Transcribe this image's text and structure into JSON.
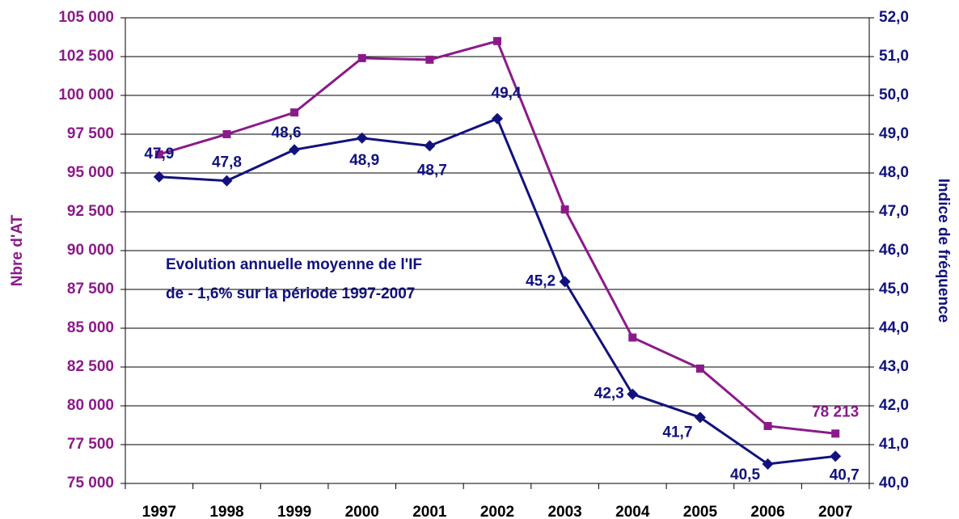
{
  "chart_data": {
    "type": "line",
    "y_label": "Nbre d'AT",
    "y2_label": "Indice de fréquence",
    "annotation": [
      "Evolution annuelle moyenne de l'IF",
      "de - 1,6% sur la période 1997-2007"
    ],
    "categories": [
      "1997",
      "1998",
      "1999",
      "2000",
      "2001",
      "2002",
      "2003",
      "2004",
      "2005",
      "2006",
      "2007"
    ],
    "series": [
      {
        "name": "Nbre d'AT",
        "color": "#8b1a89",
        "axis": "y",
        "marker": "square",
        "values": [
          96200,
          97500,
          98900,
          102400,
          102300,
          103500,
          92650,
          84400,
          82400,
          78700,
          78213
        ],
        "value_labels": [
          null,
          null,
          null,
          null,
          null,
          null,
          null,
          null,
          null,
          null,
          "78 213"
        ]
      },
      {
        "name": "Indice de fréquence",
        "color": "#12127e",
        "axis": "y2",
        "marker": "diamond",
        "values": [
          47.9,
          47.8,
          48.6,
          48.9,
          48.7,
          49.4,
          45.2,
          42.3,
          41.7,
          40.5,
          40.7
        ],
        "value_labels": [
          "47,9",
          "47,8",
          "48,6",
          "48,9",
          "48,7",
          "49,4",
          "45,2",
          "42,3",
          "41,7",
          "40,5",
          "40,7"
        ]
      }
    ],
    "ylim": [
      75000,
      105000
    ],
    "yticks": [
      {
        "value": 75000,
        "label": "75 000"
      },
      {
        "value": 77500,
        "label": "77 500"
      },
      {
        "value": 80000,
        "label": "80 000"
      },
      {
        "value": 82500,
        "label": "82 500"
      },
      {
        "value": 85000,
        "label": "85 000"
      },
      {
        "value": 87500,
        "label": "87 500"
      },
      {
        "value": 90000,
        "label": "90 000"
      },
      {
        "value": 92500,
        "label": "92 500"
      },
      {
        "value": 95000,
        "label": "95 000"
      },
      {
        "value": 97500,
        "label": "97 500"
      },
      {
        "value": 100000,
        "label": "100 000"
      },
      {
        "value": 102500,
        "label": "102 500"
      },
      {
        "value": 105000,
        "label": "105 000"
      }
    ],
    "y2lim": [
      40,
      52
    ],
    "y2ticks": [
      {
        "value": 40,
        "label": "40,0"
      },
      {
        "value": 41,
        "label": "41,0"
      },
      {
        "value": 42,
        "label": "42,0"
      },
      {
        "value": 43,
        "label": "43,0"
      },
      {
        "value": 44,
        "label": "44,0"
      },
      {
        "value": 45,
        "label": "45,0"
      },
      {
        "value": 46,
        "label": "46,0"
      },
      {
        "value": 47,
        "label": "47,0"
      },
      {
        "value": 48,
        "label": "48,0"
      },
      {
        "value": 49,
        "label": "49,0"
      },
      {
        "value": 50,
        "label": "50,0"
      },
      {
        "value": 51,
        "label": "51,0"
      },
      {
        "value": 52,
        "label": "52,0"
      }
    ],
    "grid": true
  }
}
